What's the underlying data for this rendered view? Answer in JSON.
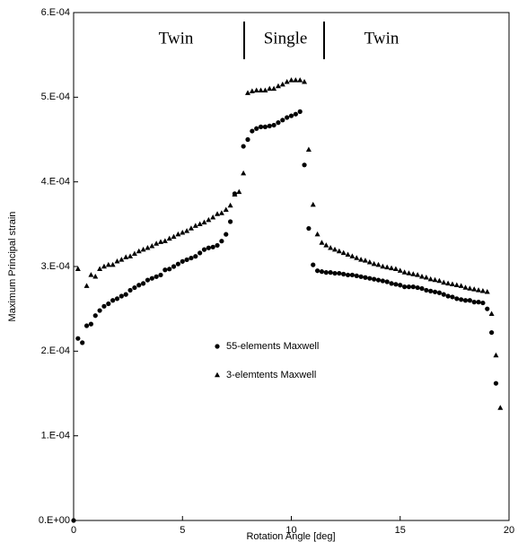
{
  "chart_data": {
    "type": "scatter",
    "x_label": "Rotation Angle [deg]",
    "y_label": "Maximum Principal strain",
    "annotations": [
      "Twin",
      "Single",
      "Twin"
    ],
    "xlim": [
      0,
      20
    ],
    "xticks": [
      0,
      5,
      10,
      15,
      20
    ],
    "ylim": [
      0,
      0.0006
    ],
    "yticks": [
      {
        "value": 0,
        "label": "0.E+00"
      },
      {
        "value": 0.0001,
        "label": "1.E-04"
      },
      {
        "value": 0.0002,
        "label": "2.E-04"
      },
      {
        "value": 0.0003,
        "label": "3.E-04"
      },
      {
        "value": 0.0004,
        "label": "4.E-04"
      },
      {
        "value": 0.0005,
        "label": "5.E-04"
      },
      {
        "value": 0.0006,
        "label": "6.E-04"
      }
    ],
    "legend": "center",
    "series": [
      {
        "name": "55-elements Maxwell",
        "color": "#000000",
        "marker": "circle",
        "x": [
          0,
          0.2,
          0.4,
          0.6,
          0.8,
          1.0,
          1.2,
          1.4,
          1.6,
          1.8,
          2.0,
          2.2,
          2.4,
          2.6,
          2.8,
          3.0,
          3.2,
          3.4,
          3.6,
          3.8,
          4.0,
          4.2,
          4.4,
          4.6,
          4.8,
          5.0,
          5.2,
          5.4,
          5.6,
          5.8,
          6.0,
          6.2,
          6.4,
          6.6,
          6.8,
          7.0,
          7.2,
          7.4,
          7.8,
          8.0,
          8.2,
          8.4,
          8.6,
          8.8,
          9.0,
          9.2,
          9.4,
          9.6,
          9.8,
          10.0,
          10.2,
          10.4,
          10.6,
          10.8,
          11.0,
          11.2,
          11.4,
          11.6,
          11.8,
          12.0,
          12.2,
          12.4,
          12.6,
          12.8,
          13.0,
          13.2,
          13.4,
          13.6,
          13.8,
          14.0,
          14.2,
          14.4,
          14.6,
          14.8,
          15.0,
          15.2,
          15.4,
          15.6,
          15.8,
          16.0,
          16.2,
          16.4,
          16.6,
          16.8,
          17.0,
          17.2,
          17.4,
          17.6,
          17.8,
          18.0,
          18.2,
          18.4,
          18.6,
          18.8,
          19.0,
          19.2,
          19.4
        ],
        "values": [
          0,
          0.000215,
          0.00021,
          0.00023,
          0.000232,
          0.000242,
          0.000248,
          0.000253,
          0.000256,
          0.00026,
          0.000262,
          0.000265,
          0.000267,
          0.000272,
          0.000275,
          0.000278,
          0.00028,
          0.000284,
          0.000286,
          0.000288,
          0.00029,
          0.000296,
          0.000297,
          0.0003,
          0.000303,
          0.000306,
          0.000308,
          0.00031,
          0.000312,
          0.000316,
          0.00032,
          0.000322,
          0.000323,
          0.000325,
          0.00033,
          0.000338,
          0.000353,
          0.000386,
          0.000442,
          0.00045,
          0.00046,
          0.000463,
          0.000465,
          0.000465,
          0.000466,
          0.000467,
          0.00047,
          0.000473,
          0.000476,
          0.000478,
          0.00048,
          0.000483,
          0.00042,
          0.000345,
          0.000302,
          0.000295,
          0.000294,
          0.000293,
          0.000293,
          0.000292,
          0.000292,
          0.000291,
          0.00029,
          0.00029,
          0.000289,
          0.000288,
          0.000287,
          0.000286,
          0.000285,
          0.000284,
          0.000283,
          0.000282,
          0.00028,
          0.000279,
          0.000278,
          0.000276,
          0.000276,
          0.000276,
          0.000275,
          0.000274,
          0.000272,
          0.000271,
          0.00027,
          0.000269,
          0.000267,
          0.000265,
          0.000264,
          0.000262,
          0.000261,
          0.00026,
          0.00026,
          0.000258,
          0.000258,
          0.000257,
          0.00025,
          0.000222,
          0.000162
        ]
      },
      {
        "name": "3-elemtents Maxwell",
        "color": "#000000",
        "marker": "triangle",
        "x": [
          0.2,
          0.6,
          0.8,
          1.0,
          1.2,
          1.4,
          1.6,
          1.8,
          2.0,
          2.2,
          2.4,
          2.6,
          2.8,
          3.0,
          3.2,
          3.4,
          3.6,
          3.8,
          4.0,
          4.2,
          4.4,
          4.6,
          4.8,
          5.0,
          5.2,
          5.4,
          5.6,
          5.8,
          6.0,
          6.2,
          6.4,
          6.6,
          6.8,
          7.0,
          7.2,
          7.4,
          7.6,
          7.8,
          8.0,
          8.2,
          8.4,
          8.6,
          8.8,
          9.0,
          9.2,
          9.4,
          9.6,
          9.8,
          10.0,
          10.2,
          10.4,
          10.6,
          10.8,
          11.0,
          11.2,
          11.4,
          11.6,
          11.8,
          12.0,
          12.2,
          12.4,
          12.6,
          12.8,
          13.0,
          13.2,
          13.4,
          13.6,
          13.8,
          14.0,
          14.2,
          14.4,
          14.6,
          14.8,
          15.0,
          15.2,
          15.4,
          15.6,
          15.8,
          16.0,
          16.2,
          16.4,
          16.6,
          16.8,
          17.0,
          17.2,
          17.4,
          17.6,
          17.8,
          18.0,
          18.2,
          18.4,
          18.6,
          18.8,
          19.0,
          19.2,
          19.4,
          19.6
        ],
        "values": [
          0.000297,
          0.000277,
          0.00029,
          0.000288,
          0.000297,
          0.0003,
          0.000302,
          0.000302,
          0.000306,
          0.000308,
          0.000311,
          0.000312,
          0.000315,
          0.000318,
          0.00032,
          0.000322,
          0.000324,
          0.000327,
          0.000329,
          0.00033,
          0.000333,
          0.000335,
          0.000338,
          0.00034,
          0.000342,
          0.000345,
          0.000348,
          0.00035,
          0.000352,
          0.000355,
          0.000358,
          0.000362,
          0.000363,
          0.000367,
          0.000372,
          0.000385,
          0.000388,
          0.00041,
          0.000505,
          0.000507,
          0.000508,
          0.000508,
          0.000508,
          0.00051,
          0.00051,
          0.000513,
          0.000515,
          0.000518,
          0.00052,
          0.00052,
          0.00052,
          0.000518,
          0.000438,
          0.000373,
          0.000338,
          0.000328,
          0.000325,
          0.000322,
          0.00032,
          0.000318,
          0.000316,
          0.000314,
          0.000312,
          0.00031,
          0.000308,
          0.000307,
          0.000305,
          0.000303,
          0.000302,
          0.0003,
          0.000299,
          0.000298,
          0.000297,
          0.000295,
          0.000293,
          0.000292,
          0.000291,
          0.00029,
          0.000288,
          0.000287,
          0.000285,
          0.000284,
          0.000283,
          0.000281,
          0.00028,
          0.000279,
          0.000278,
          0.000277,
          0.000275,
          0.000274,
          0.000273,
          0.000272,
          0.000271,
          0.00027,
          0.000244,
          0.000195,
          0.000133
        ]
      }
    ]
  }
}
